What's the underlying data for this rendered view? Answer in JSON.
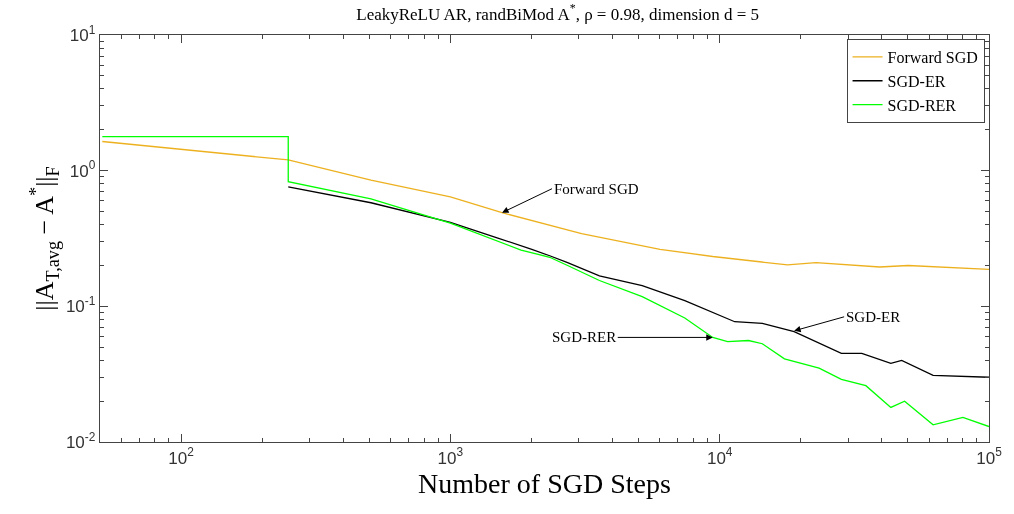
{
  "chart_data": {
    "type": "line",
    "title": "LeakyReLU AR, randBiMod A$^{*}$, ρ = 0.98, dimension d = 5",
    "xlabel": "Number of SGD Steps",
    "ylabel": "||A$_{T,avg}$ − A$^{*}$||$_{F}$",
    "log": "xy",
    "grid": false,
    "legend": "top right",
    "line_style": "solid",
    "marker": "none",
    "xlim": [
      50,
      100000
    ],
    "ylim": [
      0.01,
      10
    ],
    "xticks": [
      {
        "value": 100,
        "label": "10$^{2}$"
      },
      {
        "value": 1000,
        "label": "10$^{3}$"
      },
      {
        "value": 10000,
        "label": "10$^{4}$"
      },
      {
        "value": 100000,
        "label": "10$^{5}$"
      }
    ],
    "yticks": [
      {
        "value": 0.01,
        "label": "10$^{-2}$"
      },
      {
        "value": 0.1,
        "label": "10$^{-1}$"
      },
      {
        "value": 1,
        "label": "10$^{0}$"
      },
      {
        "value": 10,
        "label": "10$^{1}$"
      }
    ],
    "series": [
      {
        "name": "Forward SGD",
        "color": "#edb120",
        "x": [
          51,
          250,
          507,
          1000,
          1555,
          3070,
          6004,
          9425,
          17860,
          22800,
          39300,
          50100,
          100000
        ],
        "values": [
          1.64,
          1.2,
          0.85,
          0.64,
          0.49,
          0.343,
          0.263,
          0.233,
          0.202,
          0.21,
          0.195,
          0.2,
          0.187
        ]
      },
      {
        "name": "SGD-ER",
        "color": "#000000",
        "x": [
          250,
          507,
          1000,
          1491,
          2006,
          2338,
          2724,
          3576,
          5156,
          7420,
          11370,
          14400,
          18900,
          28300,
          33700,
          43200,
          47400,
          62000,
          100000
        ],
        "values": [
          0.76,
          0.58,
          0.415,
          0.32,
          0.263,
          0.236,
          0.21,
          0.168,
          0.142,
          0.11,
          0.077,
          0.075,
          0.065,
          0.045,
          0.045,
          0.038,
          0.04,
          0.031,
          0.03
        ]
      },
      {
        "name": "SGD-RER",
        "color": "#00ff00",
        "x": [
          51,
          250,
          250,
          507,
          1000,
          1830,
          2338,
          2724,
          3576,
          5156,
          7420,
          9425,
          10700,
          12800,
          14400,
          17400,
          23400,
          28300,
          34900,
          43200,
          48600,
          62000,
          80000,
          100000
        ],
        "values": [
          1.78,
          1.78,
          0.83,
          0.62,
          0.41,
          0.26,
          0.23,
          0.2,
          0.155,
          0.118,
          0.082,
          0.059,
          0.055,
          0.056,
          0.053,
          0.041,
          0.035,
          0.029,
          0.026,
          0.018,
          0.02,
          0.0134,
          0.0152,
          0.013
        ]
      }
    ],
    "annotations": [
      {
        "text": "Forward SGD",
        "x": 1555,
        "y": 0.49
      },
      {
        "text": "SGD-ER",
        "x": 18900,
        "y": 0.066
      },
      {
        "text": "SGD-RER",
        "x": 9425,
        "y": 0.059
      }
    ]
  }
}
